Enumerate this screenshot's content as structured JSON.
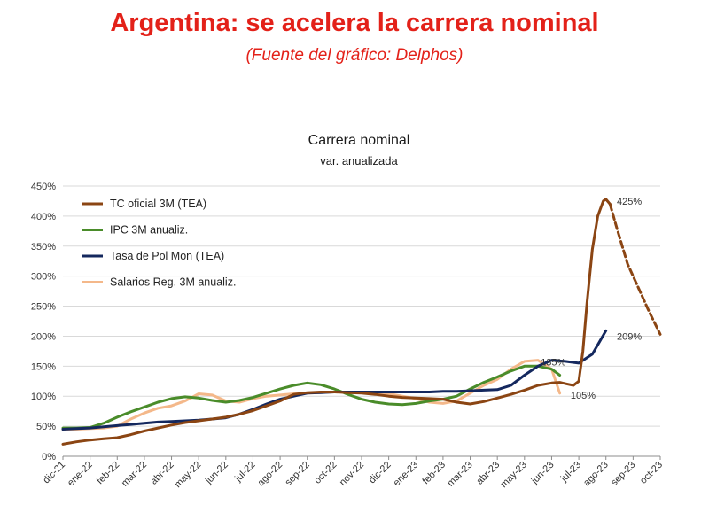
{
  "headline": "Argentina: se acelera la carrera nominal",
  "source": "(Fuente del gráfico: Delphos)",
  "chart_data": {
    "type": "line",
    "title": "Carrera nominal",
    "subtitle": "var. anualizada",
    "xlabel": "",
    "ylabel": "",
    "ylim": [
      0,
      450
    ],
    "yticks": [
      0,
      50,
      100,
      150,
      200,
      250,
      300,
      350,
      400,
      450
    ],
    "ytick_labels": [
      "0%",
      "50%",
      "100%",
      "150%",
      "200%",
      "250%",
      "300%",
      "350%",
      "400%",
      "450%"
    ],
    "categories": [
      "dic-21",
      "ene-22",
      "feb-22",
      "mar-22",
      "abr-22",
      "may-22",
      "jun-22",
      "jul-22",
      "ago-22",
      "sep-22",
      "oct-22",
      "nov-22",
      "dic-22",
      "ene-23",
      "feb-23",
      "mar-23",
      "abr-23",
      "may-23",
      "jun-23",
      "jul-23",
      "ago-23",
      "sep-23",
      "oct-23"
    ],
    "grid": "horizontal",
    "legend_position": "top-left",
    "series": [
      {
        "name": "TC oficial 3M (TEA)",
        "color": "#8b4513",
        "x": [
          0,
          0.5,
          1,
          1.5,
          2,
          2.5,
          3,
          3.5,
          4,
          4.5,
          5,
          5.5,
          6,
          6.5,
          7,
          7.5,
          8,
          8.5,
          9,
          9.5,
          10,
          10.5,
          11,
          11.5,
          12,
          12.5,
          13,
          13.5,
          14,
          14.5,
          15,
          15.5,
          16,
          16.5,
          17,
          17.5,
          18,
          18.3,
          18.6,
          18.8,
          19,
          19.15,
          19.3,
          19.5,
          19.7,
          19.9,
          20,
          20.15
        ],
        "values": [
          20,
          24,
          27,
          29,
          31,
          36,
          42,
          47,
          52,
          56,
          59,
          62,
          65,
          70,
          76,
          84,
          92,
          103,
          106,
          107,
          107,
          106,
          105,
          103,
          100,
          98,
          97,
          96,
          95,
          90,
          87,
          91,
          97,
          103,
          110,
          118,
          122,
          123,
          120,
          118,
          125,
          175,
          255,
          345,
          400,
          425,
          428,
          420
        ],
        "forecast_x": [
          20.15,
          20.4,
          20.8,
          21.2,
          21.6,
          22.0
        ],
        "forecast_values": [
          420,
          380,
          320,
          280,
          240,
          203
        ],
        "end_label": "425%"
      },
      {
        "name": "IPC 3M anualiz.",
        "color": "#4a8c2a",
        "x": [
          0,
          0.5,
          1,
          1.5,
          2,
          2.5,
          3,
          3.5,
          4,
          4.5,
          5,
          5.5,
          6,
          6.5,
          7,
          7.5,
          8,
          8.5,
          9,
          9.5,
          10,
          10.5,
          11,
          11.5,
          12,
          12.5,
          13,
          13.5,
          14,
          14.5,
          15,
          15.5,
          16,
          16.5,
          17,
          17.5,
          18,
          18.3
        ],
        "values": [
          47,
          47,
          48,
          55,
          65,
          74,
          82,
          90,
          96,
          99,
          97,
          93,
          90,
          93,
          98,
          105,
          112,
          118,
          122,
          119,
          112,
          103,
          95,
          90,
          87,
          86,
          88,
          92,
          95,
          100,
          112,
          123,
          132,
          142,
          150,
          150,
          145,
          135
        ]
      },
      {
        "name": "Tasa de Pol Mon (TEA)",
        "color": "#14285e",
        "x": [
          0,
          0.5,
          1,
          1.5,
          2,
          2.5,
          3,
          3.5,
          4,
          4.5,
          5,
          5.5,
          6,
          6.5,
          7,
          7.5,
          8,
          8.5,
          9,
          9.5,
          10,
          10.5,
          11,
          11.5,
          12,
          12.5,
          13,
          13.5,
          14,
          14.5,
          15,
          15.5,
          16,
          16.5,
          17,
          17.5,
          18,
          18.5,
          19,
          19.5,
          20
        ],
        "values": [
          45,
          46,
          47,
          49,
          51,
          53,
          55,
          57,
          58,
          59,
          60,
          62,
          64,
          70,
          78,
          87,
          95,
          100,
          105,
          106,
          107,
          107,
          107,
          107,
          107,
          107,
          107,
          107,
          108,
          108,
          109,
          110,
          111,
          118,
          135,
          150,
          160,
          158,
          155,
          170,
          209
        ],
        "end_label": "209%"
      },
      {
        "name": "Salarios Reg. 3M anualiz.",
        "color": "#f4b88a",
        "x": [
          0,
          0.5,
          1,
          1.5,
          2,
          2.5,
          3,
          3.5,
          4,
          4.5,
          5,
          5.5,
          6,
          6.5,
          7,
          7.5,
          8,
          8.5,
          9,
          9.5,
          10,
          10.5,
          11,
          11.5,
          12,
          12.5,
          13,
          13.5,
          14,
          14.5,
          15,
          15.5,
          16,
          16.5,
          17,
          17.5,
          18,
          18.3
        ],
        "values": [
          45,
          45,
          46,
          47,
          50,
          62,
          72,
          80,
          84,
          92,
          104,
          102,
          92,
          90,
          96,
          100,
          102,
          104,
          105,
          106,
          107,
          107,
          107,
          106,
          104,
          100,
          96,
          90,
          88,
          92,
          105,
          118,
          128,
          145,
          158,
          160,
          145,
          105
        ]
      }
    ],
    "annotations": [
      {
        "text": "425%",
        "x": 20.4,
        "y": 425
      },
      {
        "text": "135%",
        "x": 17.6,
        "y": 157
      },
      {
        "text": "105%",
        "x": 18.7,
        "y": 102
      },
      {
        "text": "209%",
        "x": 20.4,
        "y": 200
      }
    ]
  }
}
